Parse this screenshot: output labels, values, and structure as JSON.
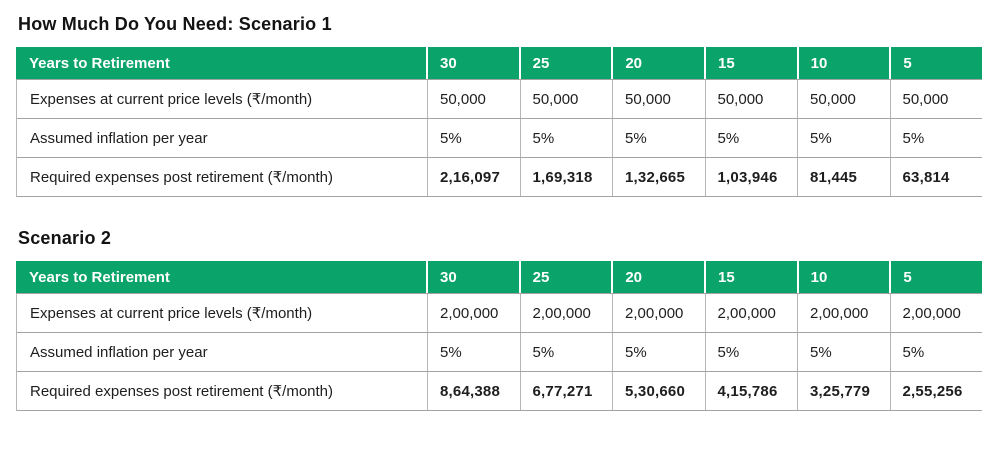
{
  "colors": {
    "header_green": "#0aa46a",
    "header_text": "#ffffff",
    "body_text": "#1e1e1e",
    "title_text": "#131313",
    "row_line": "#a3a3a3",
    "column_line": "#b5b5b5",
    "background": "#ffffff"
  },
  "tables": [
    {
      "title": "How Much Do You Need: Scenario 1",
      "header": {
        "label": "Years to Retirement",
        "columns": [
          "30",
          "25",
          "20",
          "15",
          "10",
          "5"
        ]
      },
      "rows": [
        {
          "label": "Expenses at current price levels (₹/month)",
          "values": [
            "50,000",
            "50,000",
            "50,000",
            "50,000",
            "50,000",
            "50,000"
          ],
          "emphasis": false
        },
        {
          "label": "Assumed inflation per year",
          "values": [
            "5%",
            "5%",
            "5%",
            "5%",
            "5%",
            "5%"
          ],
          "emphasis": false
        },
        {
          "label": "Required expenses post retirement (₹/month)",
          "values": [
            "2,16,097",
            "1,69,318",
            "1,32,665",
            "1,03,946",
            "81,445",
            "63,814"
          ],
          "emphasis": true
        }
      ]
    },
    {
      "title": "Scenario 2",
      "header": {
        "label": "Years to Retirement",
        "columns": [
          "30",
          "25",
          "20",
          "15",
          "10",
          "5"
        ]
      },
      "rows": [
        {
          "label": "Expenses at current price levels (₹/month)",
          "values": [
            "2,00,000",
            "2,00,000",
            "2,00,000",
            "2,00,000",
            "2,00,000",
            "2,00,000"
          ],
          "emphasis": false
        },
        {
          "label": "Assumed inflation per year",
          "values": [
            "5%",
            "5%",
            "5%",
            "5%",
            "5%",
            "5%"
          ],
          "emphasis": false
        },
        {
          "label": "Required expenses post retirement (₹/month)",
          "values": [
            "8,64,388",
            "6,77,271",
            "5,30,660",
            "4,15,786",
            "3,25,779",
            "2,55,256"
          ],
          "emphasis": true
        }
      ]
    }
  ],
  "chart_data": [
    {
      "type": "table",
      "title": "How Much Do You Need: Scenario 1",
      "columns": [
        "Years to Retirement",
        "30",
        "25",
        "20",
        "15",
        "10",
        "5"
      ],
      "rows": [
        [
          "Expenses at current price levels (₹/month)",
          "50,000",
          "50,000",
          "50,000",
          "50,000",
          "50,000",
          "50,000"
        ],
        [
          "Assumed inflation per year",
          "5%",
          "5%",
          "5%",
          "5%",
          "5%",
          "5%"
        ],
        [
          "Required expenses post retirement (₹/month)",
          "2,16,097",
          "1,69,318",
          "1,32,665",
          "1,03,946",
          "81,445",
          "63,814"
        ]
      ],
      "layout": {
        "header_fill": "#0aa46a",
        "header_text_color": "#ffffff",
        "grid": true
      }
    },
    {
      "type": "table",
      "title": "Scenario 2",
      "columns": [
        "Years to Retirement",
        "30",
        "25",
        "20",
        "15",
        "10",
        "5"
      ],
      "rows": [
        [
          "Expenses at current price levels (₹/month)",
          "2,00,000",
          "2,00,000",
          "2,00,000",
          "2,00,000",
          "2,00,000",
          "2,00,000"
        ],
        [
          "Assumed inflation per year",
          "5%",
          "5%",
          "5%",
          "5%",
          "5%",
          "5%"
        ],
        [
          "Required expenses post retirement (₹/month)",
          "8,64,388",
          "6,77,271",
          "5,30,660",
          "4,15,786",
          "3,25,779",
          "2,55,256"
        ]
      ],
      "layout": {
        "header_fill": "#0aa46a",
        "header_text_color": "#ffffff",
        "grid": true
      }
    }
  ]
}
